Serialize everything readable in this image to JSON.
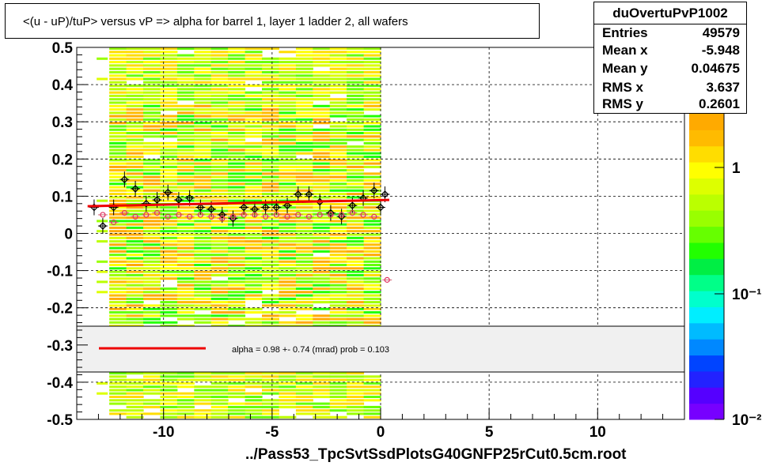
{
  "title": "<(u - uP)/tuP> versus   vP => alpha for barrel 1, layer 1 ladder 2, all wafers",
  "stats": {
    "name": "duOvertuPvP1002",
    "rows": [
      {
        "label": "Entries",
        "value": "49579"
      },
      {
        "label": "Mean x",
        "value": "-5.948"
      },
      {
        "label": "Mean y",
        "value": "0.04675"
      },
      {
        "label": "RMS x",
        "value": "3.637"
      },
      {
        "label": "RMS y",
        "value": "0.2601"
      }
    ]
  },
  "x_axis_title": "../Pass53_TpcSvtSsdPlotsG40GNFP25rCut0.5cm.root",
  "fit_legend": "alpha =    0.98 +-  0.74 (mrad) prob = 0.103",
  "colors": {
    "fit_line": "#ee0000",
    "legend_fill": "#f0f0f0",
    "palette": [
      "#7700ff",
      "#5500ff",
      "#2222ff",
      "#0044ff",
      "#0088ff",
      "#00bbff",
      "#00eeff",
      "#00ffcc",
      "#00ff88",
      "#00ee44",
      "#22ff00",
      "#66ff00",
      "#99ff00",
      "#bbff00",
      "#ddff00",
      "#ffff00",
      "#ffdd00",
      "#ffbb00",
      "#ffaa00"
    ]
  },
  "chart_data": {
    "type": "heatmap",
    "title": "<(u - uP)/tuP> versus   vP => alpha for barrel 1, layer 1 ladder 2, all wafers",
    "xlabel": "../Pass53_TpcSvtSsdPlotsG40GNFP25rCut0.5cm.root",
    "ylabel": "",
    "xlim": [
      -14,
      14
    ],
    "ylim": [
      -0.5,
      0.5
    ],
    "x_ticks": [
      -10,
      -5,
      0,
      5,
      10
    ],
    "y_ticks": [
      -0.5,
      -0.4,
      -0.3,
      -0.2,
      -0.1,
      0,
      0.1,
      0.2,
      0.3,
      0.4,
      0.5
    ],
    "x_tick_labels": [
      "-10",
      "-5",
      "0",
      "5",
      "10"
    ],
    "y_tick_labels": [
      "-0.5",
      "-0.4",
      "-0.3",
      "-0.2",
      "-0.1",
      "0",
      "0.1",
      "0.2",
      "0.3",
      "0.4",
      "0.5"
    ],
    "grid": true,
    "occupied_x_range": [
      -12.5,
      0
    ],
    "z_scale": "log",
    "z_tick_labels": [
      "1",
      "10⁻¹",
      "10⁻²"
    ],
    "series": [
      {
        "type": "profile-mean",
        "marker": "open-diamond-black",
        "points": [
          [
            -13.2,
            0.07
          ],
          [
            -12.8,
            0.02
          ],
          [
            -12.3,
            0.07
          ],
          [
            -11.8,
            0.145
          ],
          [
            -11.3,
            0.12
          ],
          [
            -10.8,
            0.08
          ],
          [
            -10.3,
            0.09
          ],
          [
            -9.8,
            0.11
          ],
          [
            -9.3,
            0.09
          ],
          [
            -8.8,
            0.095
          ],
          [
            -8.3,
            0.07
          ],
          [
            -7.8,
            0.065
          ],
          [
            -7.3,
            0.05
          ],
          [
            -6.8,
            0.04
          ],
          [
            -6.3,
            0.07
          ],
          [
            -5.8,
            0.065
          ],
          [
            -5.3,
            0.07
          ],
          [
            -4.8,
            0.07
          ],
          [
            -4.3,
            0.075
          ],
          [
            -3.8,
            0.105
          ],
          [
            -3.3,
            0.105
          ],
          [
            -2.8,
            0.085
          ],
          [
            -2.3,
            0.055
          ],
          [
            -1.8,
            0.045
          ],
          [
            -1.3,
            0.075
          ],
          [
            -0.8,
            0.095
          ],
          [
            -0.3,
            0.115
          ],
          [
            0.0,
            0.07
          ],
          [
            0.2,
            0.105
          ]
        ]
      },
      {
        "type": "profile-median",
        "marker": "open-circle-pink",
        "points": [
          [
            -12.8,
            0.05
          ],
          [
            -12.3,
            0.03
          ],
          [
            -11.8,
            0.055
          ],
          [
            -11.3,
            0.045
          ],
          [
            -10.8,
            0.05
          ],
          [
            -10.3,
            0.055
          ],
          [
            -9.8,
            0.045
          ],
          [
            -9.3,
            0.05
          ],
          [
            -8.8,
            0.045
          ],
          [
            -8.3,
            0.05
          ],
          [
            -7.8,
            0.045
          ],
          [
            -7.3,
            0.04
          ],
          [
            -6.8,
            0.045
          ],
          [
            -6.3,
            0.05
          ],
          [
            -5.8,
            0.05
          ],
          [
            -5.3,
            0.045
          ],
          [
            -4.8,
            0.05
          ],
          [
            -4.3,
            0.045
          ],
          [
            -3.8,
            0.05
          ],
          [
            -3.3,
            0.045
          ],
          [
            -2.8,
            0.05
          ],
          [
            -2.3,
            0.05
          ],
          [
            -1.8,
            0.05
          ],
          [
            -1.3,
            0.055
          ],
          [
            -0.8,
            0.05
          ],
          [
            -0.3,
            0.045
          ],
          [
            0.3,
            -0.125
          ]
        ]
      },
      {
        "type": "fit",
        "name": "alpha",
        "points": [
          [
            -13.5,
            0.073
          ],
          [
            0.4,
            0.09
          ]
        ]
      }
    ]
  }
}
